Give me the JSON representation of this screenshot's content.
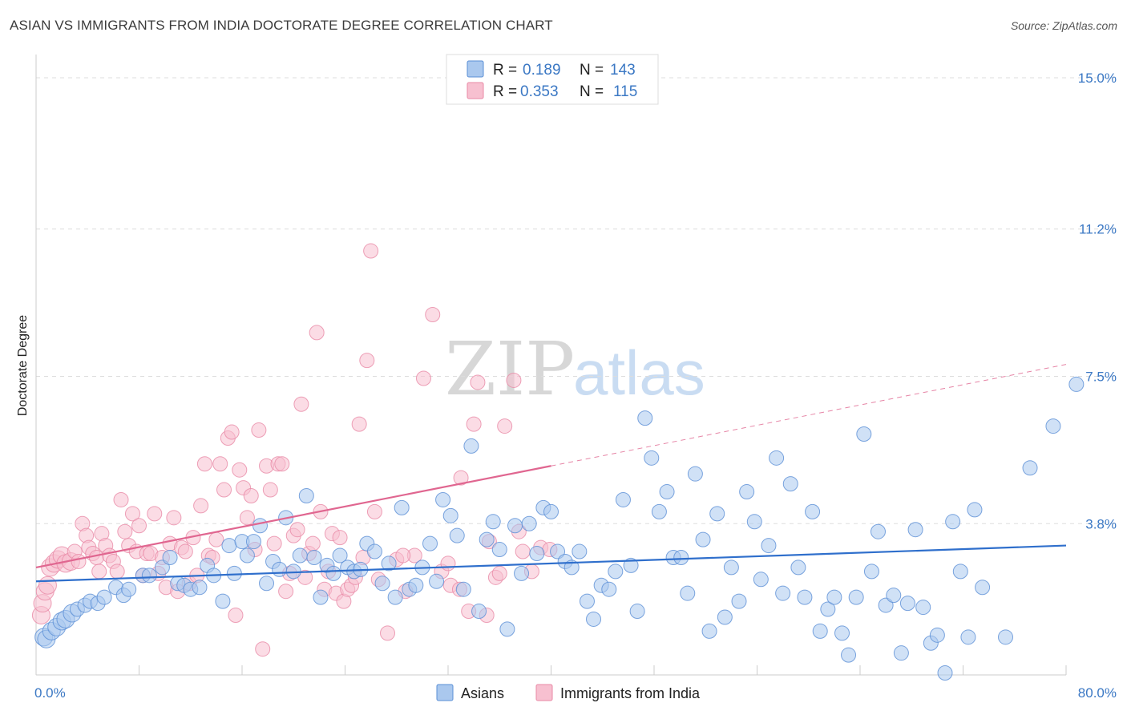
{
  "header": {
    "title": "ASIAN VS IMMIGRANTS FROM INDIA DOCTORATE DEGREE CORRELATION CHART",
    "source": "Source: ZipAtlas.com"
  },
  "watermark": {
    "part1": "ZIP",
    "part2": "atlas"
  },
  "colors": {
    "asian_fill": "#aac8ee",
    "asian_stroke": "#5b8fd6",
    "asian_line": "#2f6fcc",
    "india_fill": "#f7c0d0",
    "india_stroke": "#e88aa6",
    "india_line": "#e06690",
    "tick_label": "#3b78c4",
    "grid": "#dddddd"
  },
  "legend": {
    "rows": [
      {
        "r_label": "R =",
        "r_value": "0.189",
        "n_label": "N =",
        "n_value": "143"
      },
      {
        "r_label": "R =",
        "r_value": "0.353",
        "n_label": "N =",
        "n_value": "115"
      }
    ],
    "bottom": [
      "Asians",
      "Immigrants from India"
    ]
  },
  "chart_data": {
    "type": "scatter",
    "ylabel": "Doctorate Degree",
    "x_tick_labels": [
      "0.0%",
      "80.0%"
    ],
    "y_tick_labels": [
      "3.8%",
      "7.5%",
      "11.2%",
      "15.0%"
    ],
    "y_ticks": [
      3.8,
      7.5,
      11.2,
      15.0
    ],
    "xlim": [
      0,
      80
    ],
    "ylim": [
      0,
      15.0
    ],
    "grid": true,
    "series": [
      {
        "name": "Asians",
        "trend": {
          "x0": 0,
          "y0": 2.35,
          "x1": 80,
          "y1": 3.25,
          "dashed_from": 80
        },
        "points": [
          [
            0.6,
            0.95
          ],
          [
            0.8,
            0.9
          ],
          [
            1.2,
            1.1
          ],
          [
            1.6,
            1.2
          ],
          [
            2.0,
            1.35
          ],
          [
            2.3,
            1.4
          ],
          [
            2.8,
            1.55
          ],
          [
            3.2,
            1.65
          ],
          [
            3.8,
            1.75
          ],
          [
            4.2,
            1.85
          ],
          [
            4.8,
            1.8
          ],
          [
            5.3,
            1.95
          ],
          [
            6.2,
            2.2
          ],
          [
            6.8,
            2.0
          ],
          [
            7.2,
            2.15
          ],
          [
            8.3,
            2.5
          ],
          [
            8.8,
            2.5
          ],
          [
            9.8,
            2.7
          ],
          [
            10.4,
            2.95
          ],
          [
            11.0,
            2.3
          ],
          [
            11.5,
            2.25
          ],
          [
            12.0,
            2.15
          ],
          [
            12.7,
            2.2
          ],
          [
            13.3,
            2.75
          ],
          [
            13.8,
            2.5
          ],
          [
            14.5,
            1.85
          ],
          [
            15.0,
            3.25
          ],
          [
            15.4,
            2.55
          ],
          [
            16.0,
            3.35
          ],
          [
            16.4,
            3.0
          ],
          [
            16.9,
            3.35
          ],
          [
            17.4,
            3.75
          ],
          [
            17.9,
            2.3
          ],
          [
            18.4,
            2.85
          ],
          [
            18.9,
            2.65
          ],
          [
            19.4,
            3.95
          ],
          [
            20.0,
            2.6
          ],
          [
            20.5,
            3.0
          ],
          [
            21.0,
            4.5
          ],
          [
            21.6,
            2.95
          ],
          [
            22.1,
            1.95
          ],
          [
            22.6,
            2.75
          ],
          [
            23.1,
            2.55
          ],
          [
            23.6,
            3.0
          ],
          [
            24.2,
            2.7
          ],
          [
            24.7,
            2.6
          ],
          [
            25.2,
            2.65
          ],
          [
            25.7,
            3.3
          ],
          [
            26.3,
            3.1
          ],
          [
            26.9,
            2.3
          ],
          [
            27.4,
            2.8
          ],
          [
            27.9,
            1.95
          ],
          [
            28.4,
            4.2
          ],
          [
            29.0,
            2.15
          ],
          [
            29.5,
            2.25
          ],
          [
            30.0,
            2.7
          ],
          [
            30.6,
            3.3
          ],
          [
            31.1,
            2.35
          ],
          [
            31.6,
            4.4
          ],
          [
            32.2,
            4.0
          ],
          [
            32.7,
            3.5
          ],
          [
            33.2,
            2.15
          ],
          [
            33.8,
            5.75
          ],
          [
            34.4,
            1.6
          ],
          [
            35.0,
            3.4
          ],
          [
            35.5,
            3.85
          ],
          [
            36.0,
            3.15
          ],
          [
            36.6,
            1.15
          ],
          [
            37.2,
            3.75
          ],
          [
            37.7,
            2.55
          ],
          [
            38.3,
            3.8
          ],
          [
            38.9,
            3.05
          ],
          [
            39.4,
            4.2
          ],
          [
            40.0,
            4.1
          ],
          [
            40.5,
            3.1
          ],
          [
            41.1,
            2.85
          ],
          [
            41.6,
            2.7
          ],
          [
            42.2,
            3.1
          ],
          [
            42.8,
            1.85
          ],
          [
            43.3,
            1.4
          ],
          [
            43.9,
            2.25
          ],
          [
            44.5,
            2.15
          ],
          [
            45.0,
            2.6
          ],
          [
            45.6,
            4.4
          ],
          [
            46.2,
            2.75
          ],
          [
            46.7,
            1.6
          ],
          [
            47.3,
            6.45
          ],
          [
            47.8,
            5.45
          ],
          [
            48.4,
            4.1
          ],
          [
            49.0,
            4.6
          ],
          [
            49.5,
            2.95
          ],
          [
            50.1,
            2.95
          ],
          [
            50.6,
            2.05
          ],
          [
            51.2,
            5.05
          ],
          [
            51.8,
            3.4
          ],
          [
            52.3,
            1.1
          ],
          [
            52.9,
            4.05
          ],
          [
            53.5,
            1.45
          ],
          [
            54.0,
            2.7
          ],
          [
            54.6,
            1.85
          ],
          [
            55.2,
            4.6
          ],
          [
            55.8,
            3.85
          ],
          [
            56.3,
            2.4
          ],
          [
            56.9,
            3.25
          ],
          [
            57.5,
            5.45
          ],
          [
            58.0,
            2.05
          ],
          [
            58.6,
            4.8
          ],
          [
            59.2,
            2.7
          ],
          [
            59.7,
            1.95
          ],
          [
            60.3,
            4.1
          ],
          [
            60.9,
            1.1
          ],
          [
            61.5,
            1.65
          ],
          [
            62.0,
            1.95
          ],
          [
            62.6,
            1.05
          ],
          [
            63.1,
            0.5
          ],
          [
            63.7,
            1.95
          ],
          [
            64.3,
            6.05
          ],
          [
            64.9,
            2.6
          ],
          [
            65.4,
            3.6
          ],
          [
            66.0,
            1.75
          ],
          [
            66.6,
            2.0
          ],
          [
            67.2,
            0.55
          ],
          [
            67.7,
            1.8
          ],
          [
            68.3,
            3.65
          ],
          [
            68.9,
            1.7
          ],
          [
            69.5,
            0.8
          ],
          [
            70.0,
            1.0
          ],
          [
            70.6,
            0.05
          ],
          [
            71.2,
            3.85
          ],
          [
            71.8,
            2.6
          ],
          [
            72.4,
            0.95
          ],
          [
            72.9,
            4.15
          ],
          [
            73.5,
            2.2
          ],
          [
            75.3,
            0.95
          ],
          [
            77.2,
            5.2
          ],
          [
            79.0,
            6.25
          ],
          [
            80.8,
            7.3
          ]
        ]
      },
      {
        "name": "Immigrants from India",
        "trend": {
          "x0": 0,
          "y0": 2.7,
          "x1": 80,
          "y1": 7.8,
          "dashed_from": 40
        },
        "points": [
          [
            0.4,
            1.5
          ],
          [
            0.5,
            1.8
          ],
          [
            0.7,
            2.1
          ],
          [
            0.9,
            2.25
          ],
          [
            1.1,
            2.7
          ],
          [
            1.4,
            2.8
          ],
          [
            1.7,
            2.9
          ],
          [
            2.0,
            3.0
          ],
          [
            2.3,
            2.8
          ],
          [
            2.7,
            2.85
          ],
          [
            3.0,
            3.1
          ],
          [
            3.3,
            2.85
          ],
          [
            3.6,
            3.8
          ],
          [
            3.9,
            3.5
          ],
          [
            4.1,
            3.2
          ],
          [
            4.4,
            3.05
          ],
          [
            4.7,
            2.95
          ],
          [
            4.9,
            2.6
          ],
          [
            5.1,
            3.55
          ],
          [
            5.4,
            3.25
          ],
          [
            5.7,
            3.0
          ],
          [
            6.0,
            2.85
          ],
          [
            6.3,
            2.6
          ],
          [
            6.6,
            4.4
          ],
          [
            6.9,
            3.6
          ],
          [
            7.2,
            3.25
          ],
          [
            7.5,
            4.05
          ],
          [
            7.8,
            3.1
          ],
          [
            8.0,
            3.75
          ],
          [
            8.3,
            2.5
          ],
          [
            8.6,
            3.05
          ],
          [
            8.9,
            3.05
          ],
          [
            9.2,
            4.05
          ],
          [
            9.5,
            2.55
          ],
          [
            9.8,
            2.95
          ],
          [
            10.1,
            2.2
          ],
          [
            10.4,
            3.3
          ],
          [
            10.7,
            3.95
          ],
          [
            11.0,
            2.1
          ],
          [
            11.3,
            3.2
          ],
          [
            11.6,
            3.1
          ],
          [
            11.9,
            2.3
          ],
          [
            12.2,
            3.45
          ],
          [
            12.5,
            2.5
          ],
          [
            12.8,
            4.25
          ],
          [
            13.1,
            5.3
          ],
          [
            13.4,
            3.0
          ],
          [
            13.7,
            2.95
          ],
          [
            14.0,
            3.4
          ],
          [
            14.3,
            5.3
          ],
          [
            14.6,
            4.65
          ],
          [
            14.9,
            5.95
          ],
          [
            15.2,
            6.1
          ],
          [
            15.5,
            1.5
          ],
          [
            15.8,
            5.15
          ],
          [
            16.1,
            4.7
          ],
          [
            16.4,
            3.95
          ],
          [
            16.7,
            4.5
          ],
          [
            17.0,
            3.15
          ],
          [
            17.3,
            6.15
          ],
          [
            17.6,
            0.65
          ],
          [
            17.9,
            5.25
          ],
          [
            18.2,
            4.65
          ],
          [
            18.5,
            3.3
          ],
          [
            18.8,
            5.3
          ],
          [
            19.1,
            5.3
          ],
          [
            19.4,
            2.1
          ],
          [
            19.7,
            2.55
          ],
          [
            20.0,
            3.5
          ],
          [
            20.3,
            3.65
          ],
          [
            20.6,
            6.8
          ],
          [
            20.9,
            2.45
          ],
          [
            21.2,
            3.05
          ],
          [
            21.5,
            3.3
          ],
          [
            21.8,
            8.6
          ],
          [
            22.1,
            4.1
          ],
          [
            22.4,
            2.15
          ],
          [
            22.7,
            2.6
          ],
          [
            23.0,
            3.55
          ],
          [
            23.3,
            2.05
          ],
          [
            23.6,
            3.45
          ],
          [
            23.9,
            1.85
          ],
          [
            24.2,
            2.15
          ],
          [
            24.5,
            2.25
          ],
          [
            24.8,
            2.45
          ],
          [
            25.1,
            6.3
          ],
          [
            25.4,
            2.95
          ],
          [
            25.7,
            7.9
          ],
          [
            26.0,
            10.65
          ],
          [
            26.3,
            4.1
          ],
          [
            26.6,
            2.4
          ],
          [
            27.3,
            1.05
          ],
          [
            28.0,
            2.9
          ],
          [
            28.7,
            2.1
          ],
          [
            29.4,
            3.0
          ],
          [
            30.1,
            7.45
          ],
          [
            30.8,
            9.05
          ],
          [
            31.5,
            2.6
          ],
          [
            32.2,
            2.25
          ],
          [
            32.9,
            2.15
          ],
          [
            33.6,
            1.6
          ],
          [
            34.3,
            7.35
          ],
          [
            35.0,
            1.5
          ],
          [
            35.7,
            2.45
          ],
          [
            36.4,
            6.25
          ],
          [
            37.1,
            7.4
          ],
          [
            37.8,
            3.1
          ],
          [
            38.5,
            2.6
          ],
          [
            39.2,
            3.2
          ],
          [
            39.9,
            3.15
          ],
          [
            32.0,
            2.8
          ],
          [
            33.0,
            4.95
          ],
          [
            34.0,
            6.3
          ],
          [
            35.2,
            3.35
          ],
          [
            36.0,
            2.55
          ],
          [
            37.5,
            3.6
          ],
          [
            28.5,
            3.0
          ]
        ]
      }
    ]
  }
}
